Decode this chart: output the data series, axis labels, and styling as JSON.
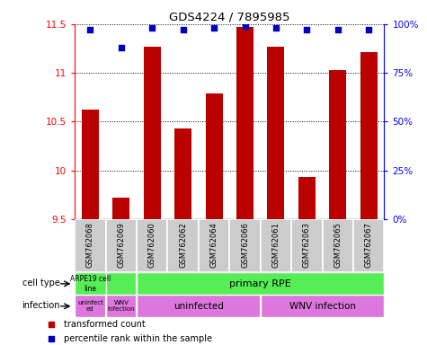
{
  "title": "GDS4224 / 7895985",
  "samples": [
    "GSM762068",
    "GSM762069",
    "GSM762060",
    "GSM762062",
    "GSM762064",
    "GSM762066",
    "GSM762061",
    "GSM762063",
    "GSM762065",
    "GSM762067"
  ],
  "transformed_count": [
    10.62,
    9.72,
    11.27,
    10.43,
    10.79,
    11.47,
    11.27,
    9.93,
    11.03,
    11.21
  ],
  "percentile_rank": [
    97,
    88,
    98,
    97,
    98,
    99,
    98,
    97,
    97,
    97
  ],
  "ylim": [
    9.5,
    11.5
  ],
  "yticks": [
    9.5,
    10.0,
    10.5,
    11.0,
    11.5
  ],
  "ytick_labels": [
    "9.5",
    "10",
    "10.5",
    "11",
    "11.5"
  ],
  "bar_color": "#bb0000",
  "dot_color": "#0000bb",
  "right_yticks": [
    0,
    25,
    50,
    75,
    100
  ],
  "right_ylabels": [
    "0%",
    "25%",
    "50%",
    "75%",
    "100%"
  ],
  "cell_type_green": "#55ee55",
  "infection_pink": "#dd77dd",
  "sample_gray": "#cccccc",
  "bg_white": "#ffffff"
}
